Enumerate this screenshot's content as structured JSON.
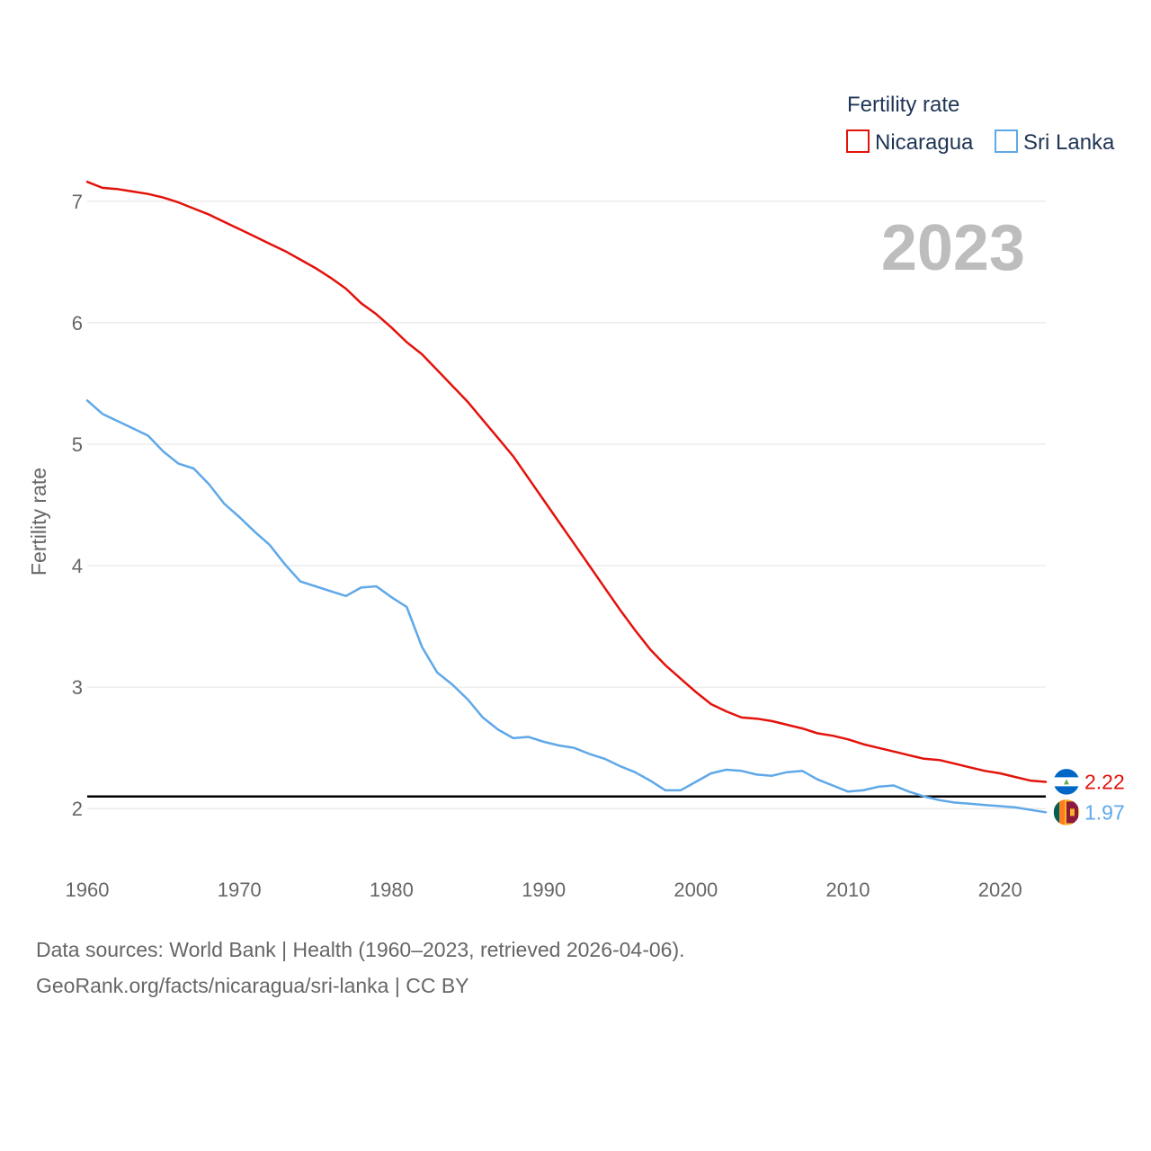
{
  "chart_data": {
    "type": "line",
    "year_display": "2023",
    "ylabel": "Fertility rate",
    "xlim": [
      1960,
      2023
    ],
    "ylim": [
      1.55,
      7.25
    ],
    "yticks": [
      2,
      3,
      4,
      5,
      6,
      7
    ],
    "xticks": [
      1960,
      1970,
      1980,
      1990,
      2000,
      2010,
      2020
    ],
    "reference_line": 2.1,
    "legend": {
      "title": "Fertility rate",
      "placement": "top-right"
    },
    "x": [
      1960,
      1961,
      1962,
      1963,
      1964,
      1965,
      1966,
      1967,
      1968,
      1969,
      1970,
      1971,
      1972,
      1973,
      1974,
      1975,
      1976,
      1977,
      1978,
      1979,
      1980,
      1981,
      1982,
      1983,
      1984,
      1985,
      1986,
      1987,
      1988,
      1989,
      1990,
      1991,
      1992,
      1993,
      1994,
      1995,
      1996,
      1997,
      1998,
      1999,
      2000,
      2001,
      2002,
      2003,
      2004,
      2005,
      2006,
      2007,
      2008,
      2009,
      2010,
      2011,
      2012,
      2013,
      2014,
      2015,
      2016,
      2017,
      2018,
      2019,
      2020,
      2021,
      2022,
      2023
    ],
    "series": [
      {
        "name": "Nicaragua",
        "color": "#e3120b",
        "end_label": "2.22",
        "flag": "nicaragua-flag",
        "values": [
          7.16,
          7.11,
          7.1,
          7.08,
          7.06,
          7.03,
          6.99,
          6.94,
          6.89,
          6.83,
          6.77,
          6.71,
          6.65,
          6.59,
          6.52,
          6.45,
          6.37,
          6.28,
          6.16,
          6.07,
          5.96,
          5.84,
          5.74,
          5.61,
          5.48,
          5.35,
          5.2,
          5.05,
          4.9,
          4.72,
          4.54,
          4.36,
          4.18,
          4.0,
          3.82,
          3.64,
          3.47,
          3.31,
          3.18,
          3.07,
          2.96,
          2.86,
          2.8,
          2.75,
          2.74,
          2.72,
          2.69,
          2.66,
          2.62,
          2.6,
          2.57,
          2.53,
          2.5,
          2.47,
          2.44,
          2.41,
          2.4,
          2.37,
          2.34,
          2.31,
          2.29,
          2.26,
          2.23,
          2.22
        ]
      },
      {
        "name": "Sri Lanka",
        "color": "#5fa8e8",
        "end_label": "1.97",
        "flag": "sri-lanka-flag",
        "values": [
          5.36,
          5.25,
          5.19,
          5.13,
          5.07,
          4.94,
          4.84,
          4.8,
          4.67,
          4.51,
          4.4,
          4.28,
          4.17,
          4.01,
          3.87,
          3.83,
          3.79,
          3.75,
          3.82,
          3.83,
          3.74,
          3.66,
          3.33,
          3.12,
          3.02,
          2.9,
          2.75,
          2.65,
          2.58,
          2.59,
          2.55,
          2.52,
          2.5,
          2.45,
          2.41,
          2.35,
          2.3,
          2.23,
          2.15,
          2.15,
          2.22,
          2.29,
          2.32,
          2.31,
          2.28,
          2.27,
          2.3,
          2.31,
          2.24,
          2.19,
          2.14,
          2.15,
          2.18,
          2.19,
          2.14,
          2.1,
          2.07,
          2.05,
          2.04,
          2.03,
          2.02,
          2.01,
          1.99,
          1.97
        ]
      }
    ]
  },
  "footer": {
    "sources": "Data sources: World Bank | Health (1960–2023, retrieved 2026-04-06).",
    "attribution": "GeoRank.org/facts/nicaragua/sri-lanka | CC BY"
  }
}
